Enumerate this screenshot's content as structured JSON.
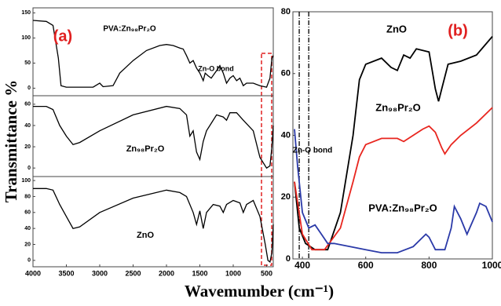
{
  "ylabel": "Transmittance %",
  "xlabel": "Wavemumber (cm⁻¹)",
  "chart_data": [
    {
      "type": "line",
      "xlim": [
        4000,
        400
      ],
      "ylim": [
        -15,
        160
      ],
      "yticks": [
        0,
        50,
        100,
        150
      ],
      "annotations": [
        {
          "text": "(a)",
          "color": "#e02020"
        },
        {
          "text": "Zn-O bond",
          "color": "#000000"
        }
      ],
      "series": [
        {
          "name": "PVA:Zn₉₈Pr₂O",
          "color": "#000000",
          "x": [
            4000,
            3800,
            3700,
            3620,
            3580,
            3500,
            3100,
            3000,
            2950,
            2800,
            2700,
            2500,
            2300,
            2100,
            2000,
            1900,
            1800,
            1750,
            1700,
            1650,
            1600,
            1550,
            1500,
            1450,
            1420,
            1380,
            1330,
            1250,
            1200,
            1150,
            1100,
            1050,
            1000,
            950,
            900,
            850,
            800,
            700,
            600,
            500,
            450,
            420,
            400
          ],
          "values": [
            135,
            133,
            125,
            60,
            5,
            2,
            2,
            10,
            3,
            5,
            30,
            55,
            75,
            85,
            87,
            85,
            80,
            78,
            65,
            50,
            55,
            40,
            30,
            15,
            30,
            25,
            20,
            35,
            45,
            30,
            10,
            20,
            25,
            15,
            20,
            5,
            10,
            10,
            5,
            2,
            20,
            60,
            65
          ]
        }
      ]
    },
    {
      "type": "line",
      "xlim": [
        4000,
        400
      ],
      "ylim": [
        -8,
        68
      ],
      "yticks": [
        0,
        20,
        40,
        60
      ],
      "series": [
        {
          "name": "Zn₉₈Pr₂O",
          "color": "#000000",
          "x": [
            4000,
            3800,
            3700,
            3600,
            3500,
            3400,
            3300,
            3000,
            2500,
            2000,
            1800,
            1700,
            1650,
            1600,
            1550,
            1500,
            1450,
            1400,
            1350,
            1250,
            1150,
            1100,
            1050,
            950,
            850,
            700,
            600,
            500,
            450,
            420,
            400
          ],
          "values": [
            58,
            58,
            55,
            40,
            30,
            22,
            24,
            35,
            50,
            58,
            56,
            50,
            30,
            35,
            15,
            8,
            25,
            35,
            40,
            50,
            48,
            45,
            52,
            52,
            45,
            35,
            10,
            0,
            2,
            20,
            40
          ]
        }
      ]
    },
    {
      "type": "line",
      "xlim": [
        4000,
        400
      ],
      "ylim": [
        -8,
        105
      ],
      "yticks": [
        0,
        20,
        40,
        60,
        80,
        100
      ],
      "xticks": [
        4000,
        3500,
        3000,
        2500,
        2000,
        1500,
        1000,
        500
      ],
      "series": [
        {
          "name": "ZnO",
          "color": "#000000",
          "x": [
            4000,
            3800,
            3700,
            3600,
            3500,
            3400,
            3300,
            3000,
            2500,
            2000,
            1800,
            1700,
            1600,
            1550,
            1500,
            1450,
            1400,
            1300,
            1200,
            1150,
            1100,
            1000,
            900,
            850,
            800,
            700,
            600,
            520,
            480,
            450,
            420,
            400
          ],
          "values": [
            90,
            90,
            88,
            70,
            55,
            40,
            42,
            60,
            78,
            88,
            85,
            80,
            60,
            45,
            62,
            40,
            60,
            70,
            68,
            60,
            70,
            75,
            72,
            60,
            70,
            75,
            55,
            20,
            0,
            -2,
            10,
            45
          ]
        }
      ]
    },
    {
      "type": "line",
      "xlim": [
        370,
        1000
      ],
      "ylim": [
        0,
        80
      ],
      "yticks": [
        0,
        20,
        40,
        60,
        80
      ],
      "xticks": [
        400,
        600,
        800,
        1000
      ],
      "markers": [
        390,
        420
      ],
      "annotations": [
        {
          "text": "(b)",
          "color": "#e02020"
        },
        {
          "text": "Zn-O bond",
          "color": "#000000"
        }
      ],
      "series": [
        {
          "name": "ZnO",
          "color": "#000000",
          "x": [
            375,
            390,
            410,
            440,
            480,
            520,
            560,
            580,
            600,
            650,
            680,
            700,
            720,
            740,
            760,
            800,
            820,
            830,
            840,
            860,
            900,
            950,
            1000
          ],
          "values": [
            25,
            10,
            5,
            3,
            3,
            15,
            40,
            58,
            63,
            65,
            62,
            61,
            66,
            65,
            68,
            67,
            55,
            51,
            55,
            63,
            64,
            66,
            72
          ]
        },
        {
          "name": "Zn₉₈Pr₂O",
          "color": "#e8261f",
          "x": [
            375,
            400,
            430,
            470,
            520,
            560,
            580,
            600,
            650,
            700,
            720,
            750,
            780,
            800,
            820,
            840,
            850,
            870,
            900,
            950,
            1000
          ],
          "values": [
            25,
            8,
            3,
            3,
            10,
            25,
            33,
            37,
            39,
            39,
            38,
            40,
            42,
            43,
            41,
            36,
            34,
            37,
            40,
            44,
            49
          ]
        },
        {
          "name": "PVA:Zn₉₈Pr₂O",
          "color": "#2b3aa8",
          "x": [
            375,
            385,
            400,
            420,
            440,
            460,
            480,
            500,
            550,
            600,
            650,
            700,
            750,
            790,
            800,
            820,
            850,
            870,
            880,
            900,
            920,
            950,
            960,
            980,
            1000
          ],
          "values": [
            42,
            30,
            15,
            10,
            11,
            8,
            5,
            5,
            4,
            3,
            2,
            2,
            4,
            8,
            7,
            3,
            3,
            10,
            17,
            13,
            8,
            15,
            18,
            17,
            12
          ]
        }
      ]
    }
  ]
}
